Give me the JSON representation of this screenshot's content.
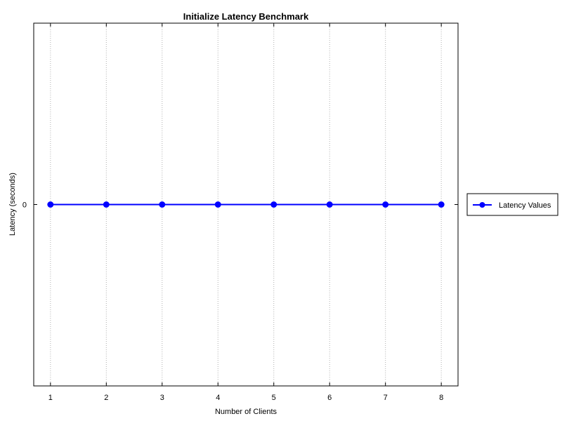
{
  "chart_data": {
    "type": "line",
    "title": "Initialize Latency Benchmark",
    "xlabel": "Number of Clients",
    "ylabel": "Latency (seconds)",
    "x": [
      1,
      2,
      3,
      4,
      5,
      6,
      7,
      8
    ],
    "x_ticks": [
      "1",
      "2",
      "3",
      "4",
      "5",
      "6",
      "7",
      "8"
    ],
    "y_ticks": [
      "0"
    ],
    "xlim": [
      0.7,
      8.3
    ],
    "ylim": [
      -1,
      1
    ],
    "grid": "vertical dotted",
    "legend_position": "outside-right",
    "series": [
      {
        "name": "Latency Values",
        "values": [
          0,
          0,
          0,
          0,
          0,
          0,
          0,
          0
        ],
        "color": "#0000ff",
        "marker": "circle"
      }
    ]
  }
}
